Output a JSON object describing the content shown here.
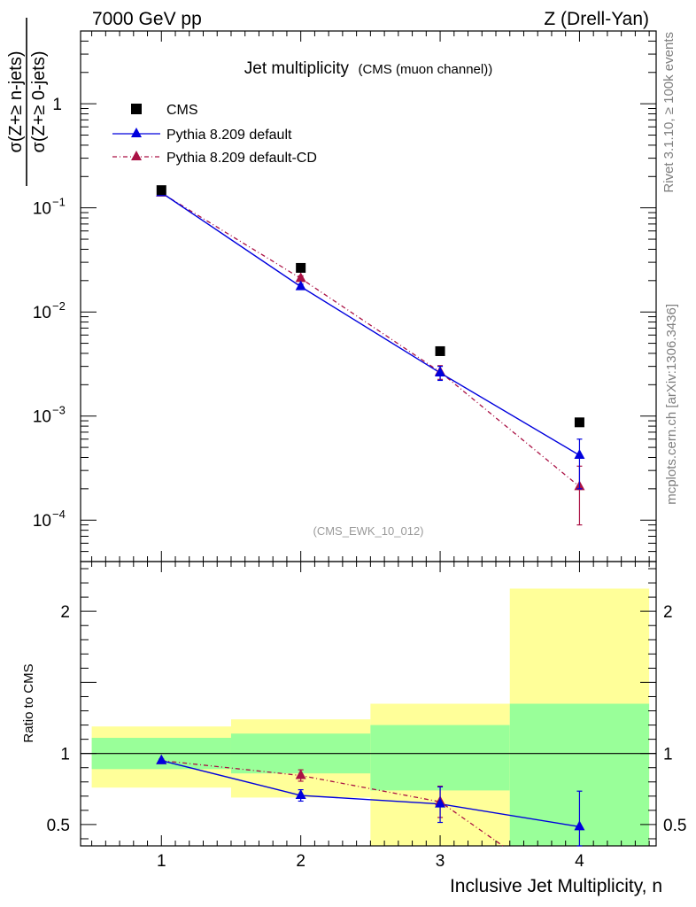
{
  "header": {
    "energy": "7000 GeV pp",
    "process": "Z (Drell-Yan)"
  },
  "side": {
    "rivet": "Rivet 3.1.10, ≥ 100k events",
    "mcplots": "mcplots.cern.ch [arXiv:1306.3436]"
  },
  "colors": {
    "data": "#000000",
    "default": "#0000dd",
    "default_cd": "#aa1144",
    "band_inner": "#99ff99",
    "band_outer": "#ffff99"
  },
  "chart_data": [
    {
      "type": "scatter",
      "title": "Jet multiplicity",
      "subtitle": "(CMS (muon channel))",
      "analysis_label": "(CMS_EWK_10_012)",
      "ylabel_num": "σ(Z+≥ n-jets)",
      "ylabel_den": "σ(Z+≥ 0-jets)",
      "yscale": "log",
      "ylim": [
        4e-05,
        5
      ],
      "xlim": [
        0.42,
        4.55
      ],
      "xticks": [
        1,
        2,
        3,
        4
      ],
      "yticks": [
        {
          "value": 1,
          "base": "1",
          "exp": ""
        },
        {
          "value": 0.1,
          "base": "10",
          "exp": "−1"
        },
        {
          "value": 0.01,
          "base": "10",
          "exp": "−2"
        },
        {
          "value": 0.001,
          "base": "10",
          "exp": "−3"
        },
        {
          "value": 0.0001,
          "base": "10",
          "exp": "−4"
        }
      ],
      "legend_position": "top-left",
      "series": [
        {
          "name": "CMS",
          "x": [
            1,
            2,
            3,
            4
          ],
          "y": [
            0.148,
            0.0265,
            0.0042,
            0.00087
          ]
        },
        {
          "name": "Pythia 8.209 default",
          "x": [
            1,
            2,
            3,
            4
          ],
          "y": [
            0.14,
            0.0175,
            0.0026,
            0.00042
          ],
          "err_low": [
            0.005,
            0.001,
            0.0004,
            0.00022
          ],
          "err_high": [
            0.005,
            0.001,
            0.0004,
            0.00018
          ]
        },
        {
          "name": "Pythia 8.209 default-CD",
          "x": [
            1,
            2,
            3,
            4
          ],
          "y": [
            0.139,
            0.021,
            0.00265,
            0.00021
          ],
          "err_low": [
            0.005,
            0.0012,
            0.0004,
            0.00012
          ],
          "err_high": [
            0.005,
            0.0012,
            0.0004,
            0.00012
          ]
        }
      ]
    },
    {
      "type": "scatter",
      "ylabel": "Ratio to CMS",
      "xlabel": "Inclusive Jet Multiplicity, n",
      "ylim": [
        0.35,
        2.35
      ],
      "xlim": [
        0.42,
        4.55
      ],
      "xticks": [
        1,
        2,
        3,
        4
      ],
      "yticks": [
        {
          "value": 0.5,
          "label": "0.5"
        },
        {
          "value": 1,
          "label": "1"
        },
        {
          "value": 2,
          "label": "2"
        }
      ],
      "bands": [
        {
          "x0": 0.5,
          "x1": 1.5,
          "inner": [
            0.89,
            1.11
          ],
          "outer": [
            0.76,
            1.19
          ]
        },
        {
          "x0": 1.5,
          "x1": 2.5,
          "inner": [
            0.86,
            1.14
          ],
          "outer": [
            0.69,
            1.24
          ]
        },
        {
          "x0": 2.5,
          "x1": 3.5,
          "inner": [
            0.74,
            1.2
          ],
          "outer": [
            0.35,
            1.35
          ]
        },
        {
          "x0": 3.5,
          "x1": 4.5,
          "inner": [
            0.35,
            1.35
          ],
          "outer": [
            0.35,
            2.16
          ]
        }
      ],
      "series": [
        {
          "name": "Pythia 8.209 default",
          "x": [
            1,
            2,
            3,
            4
          ],
          "y": [
            0.95,
            0.705,
            0.645,
            0.485
          ],
          "err_low": [
            0.01,
            0.04,
            0.13,
            0.25
          ],
          "err_high": [
            0.01,
            0.04,
            0.12,
            0.25
          ]
        },
        {
          "name": "Pythia 8.209 default-CD",
          "x": [
            1,
            2,
            3
          ],
          "y": [
            0.95,
            0.845,
            0.66
          ],
          "err_low": [
            0.01,
            0.04,
            0.11
          ],
          "err_high": [
            0.01,
            0.04,
            0.11
          ],
          "tail": {
            "x": 3.45,
            "y": 0.35
          }
        }
      ]
    }
  ]
}
